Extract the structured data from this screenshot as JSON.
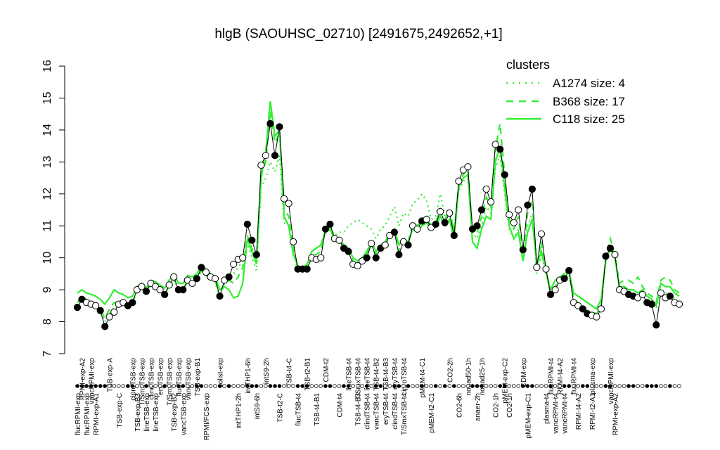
{
  "chart_data": {
    "type": "line",
    "title": "hlgB (SAOUHSC_02710) [2491675,2492652,+1]",
    "xlabel": "",
    "ylabel": "",
    "ylim": [
      7,
      16
    ],
    "yticks": [
      7,
      8,
      9,
      10,
      11,
      12,
      13,
      14,
      15,
      16
    ],
    "n": 100,
    "legend": {
      "title": "clusters",
      "placement": "top-right",
      "color": "#33ee33",
      "entries": [
        {
          "label": "A1274 size: 4",
          "dash": "dotted"
        },
        {
          "label": "B368 size: 17",
          "dash": "dashed"
        },
        {
          "label": "C118 size: 25",
          "dash": "solid"
        }
      ]
    },
    "top_labels": [
      "RPMI-exp-A2",
      "vancRPMI-exp",
      "TSB-exp-A",
      "ciproTSB-exp",
      "T/SmxTSB-exp",
      "clindTSB-exp",
      "eryTSB-exp",
      "T/SmxTSB-exp",
      "flucTSB-exp",
      "vancTSB-exp",
      "TSB-exp-B1",
      "colist-exp",
      "intTHP1-6h",
      "intS9-2h",
      "TSB-t4-C",
      "TSB-t2-B1",
      "CDM-t2",
      "lineTSB-t4",
      "T/SmxTSB-t4",
      "lineTSB-t4",
      "TSB-t4-B2",
      "TSB-t4-B3",
      "eryTSB-t4",
      "ciproTSB-t4",
      "pMEM-t4-C1",
      "CO2-2h",
      "nonad50-1h",
      "nonad25-1h",
      "pMEM-exp-C2",
      "CDM-exp",
      "flucRPMI-t4",
      "RPMI-t4-A2",
      "flucRPMI-t4",
      "plasma-exp",
      "vancRPMI-exp"
    ],
    "top_label_idx": [
      1,
      3,
      7,
      12,
      14,
      16,
      18,
      20,
      22,
      24,
      26,
      31,
      37,
      41,
      46,
      50,
      54,
      59,
      61,
      63,
      65,
      67,
      69,
      71,
      75,
      81,
      85,
      88,
      93,
      97,
      103,
      105,
      108,
      112,
      116
    ],
    "bottom_labels": [
      "flucRPMI-exp",
      "flucRPMI-exp",
      "RPMI-exp-A1",
      "TSB-exp-C",
      "TSB-exp-B3",
      "lineTSB-exp",
      "lineTSB-exp",
      "TSB-exp-B2",
      "vancTSB-exp",
      "RPMI/FCS-exp",
      "intTHP1-2h",
      "intS9-6h",
      "TSB-t2-C",
      "flucTSB-t4",
      "TSB-t4-B1",
      "CDM-t4",
      "TSB-t4-B3",
      "clindTSB-t4",
      "vancTSB-t4",
      "eryTSB-t4",
      "clindTSB-t4",
      "T/SmxTSB-t4",
      "pMEM-t2-C1",
      "CO2-6h",
      "anaer-2h",
      "CO2-1h",
      "CO2-1h",
      "pMEM-exp-C1",
      "plasma-t4",
      "vancRPMI-t4",
      "vancRPMI-t4",
      "RPMI-t4-A2",
      "RPMI-t2-A1",
      "RPMI-exp-A2"
    ],
    "bottom_label_idx": [
      0,
      2,
      4,
      9,
      13,
      15,
      17,
      21,
      23,
      28,
      35,
      39,
      44,
      48,
      52,
      57,
      61,
      63,
      65,
      67,
      69,
      71,
      77,
      83,
      87,
      91,
      94,
      98,
      102,
      104,
      106,
      109,
      112,
      117
    ],
    "series": [
      {
        "name": "",
        "style": "points-black",
        "values": [
          8.45,
          8.7,
          8.6,
          8.55,
          8.5,
          8.35,
          7.85,
          8.15,
          8.3,
          8.55,
          8.6,
          8.5,
          8.6,
          9.0,
          9.1,
          8.95,
          9.2,
          9.1,
          9.0,
          8.85,
          9.15,
          9.4,
          9.0,
          9.0,
          9.3,
          9.2,
          9.35,
          9.7,
          9.55,
          9.4,
          9.35,
          8.8,
          9.3,
          9.4,
          9.8,
          9.95,
          10.0,
          11.05,
          10.55,
          10.1,
          12.9,
          13.2,
          14.2,
          13.2,
          14.1,
          11.85,
          11.7,
          10.5,
          9.65,
          9.65,
          9.65,
          10.0,
          9.95,
          10.0,
          10.9,
          11.05,
          10.6,
          10.55,
          10.3,
          10.2,
          9.8,
          9.75,
          9.9,
          10.0,
          10.45,
          10.0,
          10.3,
          10.4,
          10.7,
          10.8,
          10.1,
          10.5,
          10.4,
          11.0,
          10.9,
          11.15,
          11.2,
          10.95,
          11.05,
          11.45,
          11.1,
          11.4,
          10.7,
          12.4,
          12.75,
          12.85,
          10.9,
          11.0,
          11.5,
          12.15,
          11.75,
          13.55,
          13.4,
          12.6,
          11.35,
          11.1,
          11.5,
          10.25,
          11.65,
          12.15,
          9.7,
          10.75,
          9.65,
          8.85,
          9.0,
          9.3,
          9.35,
          9.6,
          8.6,
          8.5,
          8.4,
          8.25,
          8.2,
          8.15,
          8.4,
          10.05,
          10.3,
          10.1,
          9.0,
          8.95,
          8.85,
          8.8,
          8.75,
          8.85,
          8.6,
          8.55,
          7.9,
          8.9,
          8.75,
          8.8,
          8.6,
          8.55
        ]
      },
      {
        "name": "C118 size: 25",
        "style": "solid",
        "values": [
          8.9,
          9.0,
          8.9,
          8.85,
          8.8,
          8.7,
          8.55,
          8.75,
          9.0,
          8.9,
          8.85,
          8.75,
          8.8,
          9.1,
          9.2,
          9.05,
          9.3,
          9.25,
          9.15,
          9.05,
          9.3,
          9.5,
          9.2,
          9.2,
          9.45,
          9.4,
          9.5,
          9.75,
          9.65,
          9.5,
          9.4,
          9.0,
          9.1,
          9.0,
          8.75,
          8.8,
          9.2,
          10.6,
          10.2,
          9.8,
          12.5,
          13.3,
          14.9,
          13.8,
          14.0,
          11.3,
          11.0,
          10.1,
          9.75,
          9.7,
          9.8,
          10.2,
          10.3,
          10.4,
          10.8,
          10.9,
          10.6,
          10.5,
          10.4,
          10.3,
          10.0,
          9.9,
          10.0,
          10.2,
          10.5,
          10.2,
          10.4,
          10.5,
          10.7,
          10.9,
          10.4,
          10.6,
          10.5,
          10.9,
          10.8,
          11.0,
          11.1,
          10.9,
          11.0,
          11.3,
          11.0,
          11.2,
          10.6,
          12.2,
          12.5,
          12.6,
          10.5,
          10.3,
          10.9,
          11.3,
          11.2,
          13.0,
          13.5,
          12.2,
          11.0,
          10.6,
          10.8,
          9.9,
          10.8,
          11.2,
          9.8,
          10.2,
          9.6,
          9.0,
          9.3,
          9.4,
          9.5,
          9.6,
          8.9,
          8.8,
          8.7,
          8.6,
          8.5,
          8.4,
          8.7,
          9.9,
          10.3,
          10.0,
          9.1,
          9.1,
          9.0,
          9.0,
          8.9,
          9.0,
          8.8,
          8.7,
          8.5,
          9.2,
          9.1,
          9.1,
          8.9,
          8.8
        ]
      },
      {
        "name": "B368 size: 17",
        "style": "dashed",
        "values": [
          8.6,
          8.8,
          8.7,
          8.6,
          8.55,
          8.4,
          8.1,
          8.4,
          8.6,
          8.6,
          8.65,
          8.55,
          8.6,
          9.0,
          9.1,
          8.95,
          9.2,
          9.1,
          9.0,
          8.9,
          9.1,
          9.35,
          9.0,
          9.0,
          9.25,
          9.2,
          9.3,
          9.6,
          9.5,
          9.35,
          9.3,
          8.8,
          9.2,
          9.3,
          9.2,
          9.4,
          9.7,
          10.7,
          10.3,
          9.9,
          12.6,
          13.0,
          14.6,
          13.6,
          13.9,
          11.5,
          11.3,
          10.3,
          9.7,
          9.7,
          9.8,
          10.1,
          10.1,
          10.2,
          10.9,
          11.0,
          10.6,
          10.6,
          10.4,
          10.3,
          9.9,
          9.8,
          10.0,
          10.1,
          10.5,
          10.1,
          10.4,
          10.5,
          10.8,
          10.9,
          10.2,
          10.6,
          10.5,
          11.1,
          11.0,
          11.2,
          11.3,
          11.0,
          11.1,
          11.5,
          11.2,
          11.5,
          10.8,
          12.3,
          12.6,
          12.8,
          10.8,
          10.8,
          11.3,
          11.9,
          11.6,
          13.4,
          14.2,
          12.6,
          11.2,
          10.9,
          11.3,
          10.1,
          11.4,
          11.8,
          9.7,
          10.5,
          9.6,
          8.9,
          9.1,
          9.3,
          9.4,
          9.6,
          8.7,
          8.6,
          8.5,
          8.35,
          8.3,
          8.25,
          8.5,
          10.0,
          10.6,
          10.1,
          9.2,
          9.3,
          9.3,
          9.2,
          9.4,
          9.1,
          8.9,
          8.8,
          8.6,
          9.3,
          9.4,
          9.3,
          9.0,
          8.9
        ]
      },
      {
        "name": "A1274 size: 4",
        "style": "dotted",
        "values": [
          8.5,
          8.65,
          8.6,
          8.5,
          8.45,
          8.3,
          8.0,
          8.25,
          8.45,
          8.5,
          8.55,
          8.45,
          8.55,
          8.95,
          9.05,
          8.9,
          9.15,
          9.05,
          8.95,
          8.85,
          9.1,
          9.35,
          8.95,
          8.95,
          9.25,
          9.15,
          9.3,
          9.6,
          9.45,
          9.3,
          9.25,
          8.7,
          9.2,
          9.3,
          9.5,
          9.7,
          9.9,
          10.5,
          10.0,
          9.6,
          12.2,
          12.5,
          13.0,
          12.7,
          13.2,
          11.1,
          11.0,
          10.2,
          9.6,
          9.6,
          9.7,
          10.2,
          10.3,
          10.4,
          10.9,
          11.0,
          10.7,
          10.8,
          10.8,
          11.0,
          11.1,
          11.2,
          11.1,
          11.0,
          10.9,
          10.6,
          10.9,
          11.0,
          11.3,
          11.6,
          11.0,
          11.4,
          11.3,
          11.7,
          11.8,
          12.0,
          11.8,
          11.2,
          11.3,
          12.0,
          11.3,
          11.5,
          10.9,
          12.1,
          12.4,
          12.5,
          10.8,
          10.6,
          11.0,
          11.6,
          11.4,
          12.8,
          13.2,
          12.0,
          10.9,
          10.6,
          10.9,
          9.9,
          11.0,
          11.4,
          9.5,
          10.1,
          9.5,
          8.9,
          9.1,
          9.2,
          9.3,
          9.5,
          8.65,
          8.55,
          8.45,
          8.3,
          8.3,
          8.2,
          8.45,
          9.9,
          10.4,
          10.0,
          9.0,
          9.0,
          8.9,
          8.9,
          8.8,
          8.9,
          8.65,
          8.6,
          8.4,
          9.0,
          8.9,
          8.9,
          8.7,
          8.6
        ]
      }
    ],
    "marker_fill": [
      "b",
      "b",
      "w",
      "w",
      "w",
      "b",
      "b",
      "w",
      "w",
      "w",
      "w",
      "b",
      "b",
      "w",
      "w",
      "b",
      "w",
      "w",
      "w",
      "b",
      "w",
      "w",
      "b",
      "b",
      "w",
      "w",
      "b",
      "b",
      "w",
      "w",
      "w",
      "b",
      "w",
      "b",
      "w",
      "w",
      "w",
      "b",
      "b",
      "b",
      "w",
      "w",
      "b",
      "b",
      "b",
      "w",
      "w",
      "w",
      "b",
      "b",
      "b",
      "w",
      "w",
      "w",
      "b",
      "b",
      "w",
      "w",
      "b",
      "b",
      "w",
      "w",
      "w",
      "b",
      "w",
      "b",
      "b",
      "w",
      "w",
      "b",
      "b",
      "w",
      "b",
      "w",
      "w",
      "b",
      "w",
      "w",
      "b",
      "w",
      "b",
      "w",
      "b",
      "w",
      "w",
      "w",
      "b",
      "b",
      "b",
      "w",
      "w",
      "w",
      "b",
      "b",
      "w",
      "w",
      "w",
      "b",
      "b",
      "b",
      "w",
      "w",
      "w",
      "b",
      "w",
      "w",
      "b",
      "b",
      "w",
      "w",
      "b",
      "b",
      "w",
      "w",
      "w",
      "b",
      "b",
      "w",
      "w",
      "w",
      "b",
      "b",
      "w",
      "w",
      "b",
      "b",
      "b",
      "w",
      "w",
      "b",
      "w"
    ],
    "rug_fill": [
      "b",
      "b",
      "b",
      "b",
      "b",
      "b",
      "b",
      "w",
      "w",
      "w",
      "w",
      "b",
      "b",
      "w",
      "w",
      "b",
      "w",
      "w",
      "w",
      "b",
      "w",
      "w",
      "b",
      "b",
      "w",
      "w",
      "b",
      "b",
      "w",
      "w",
      "w",
      "b",
      "w",
      "b",
      "w",
      "w",
      "w",
      "b",
      "b",
      "b",
      "w",
      "w",
      "b",
      "b",
      "b",
      "w",
      "w",
      "w",
      "b",
      "b",
      "b",
      "w",
      "w",
      "w",
      "b",
      "b",
      "w",
      "w",
      "b",
      "b",
      "w",
      "w",
      "w",
      "b",
      "w",
      "b",
      "b",
      "w",
      "w",
      "b",
      "b",
      "w",
      "b",
      "w",
      "w",
      "b",
      "w",
      "w",
      "b",
      "w",
      "b",
      "w",
      "b",
      "w",
      "w",
      "w",
      "b",
      "b",
      "b",
      "w",
      "w",
      "w",
      "b",
      "b",
      "w",
      "w",
      "w",
      "b",
      "b",
      "b",
      "w",
      "w",
      "w",
      "b",
      "w",
      "w",
      "b",
      "b",
      "w",
      "w",
      "b",
      "b",
      "w",
      "w",
      "w",
      "b",
      "b",
      "w",
      "w",
      "w",
      "b",
      "b",
      "w",
      "w",
      "b",
      "b",
      "b",
      "w",
      "w",
      "b",
      "w"
    ]
  }
}
